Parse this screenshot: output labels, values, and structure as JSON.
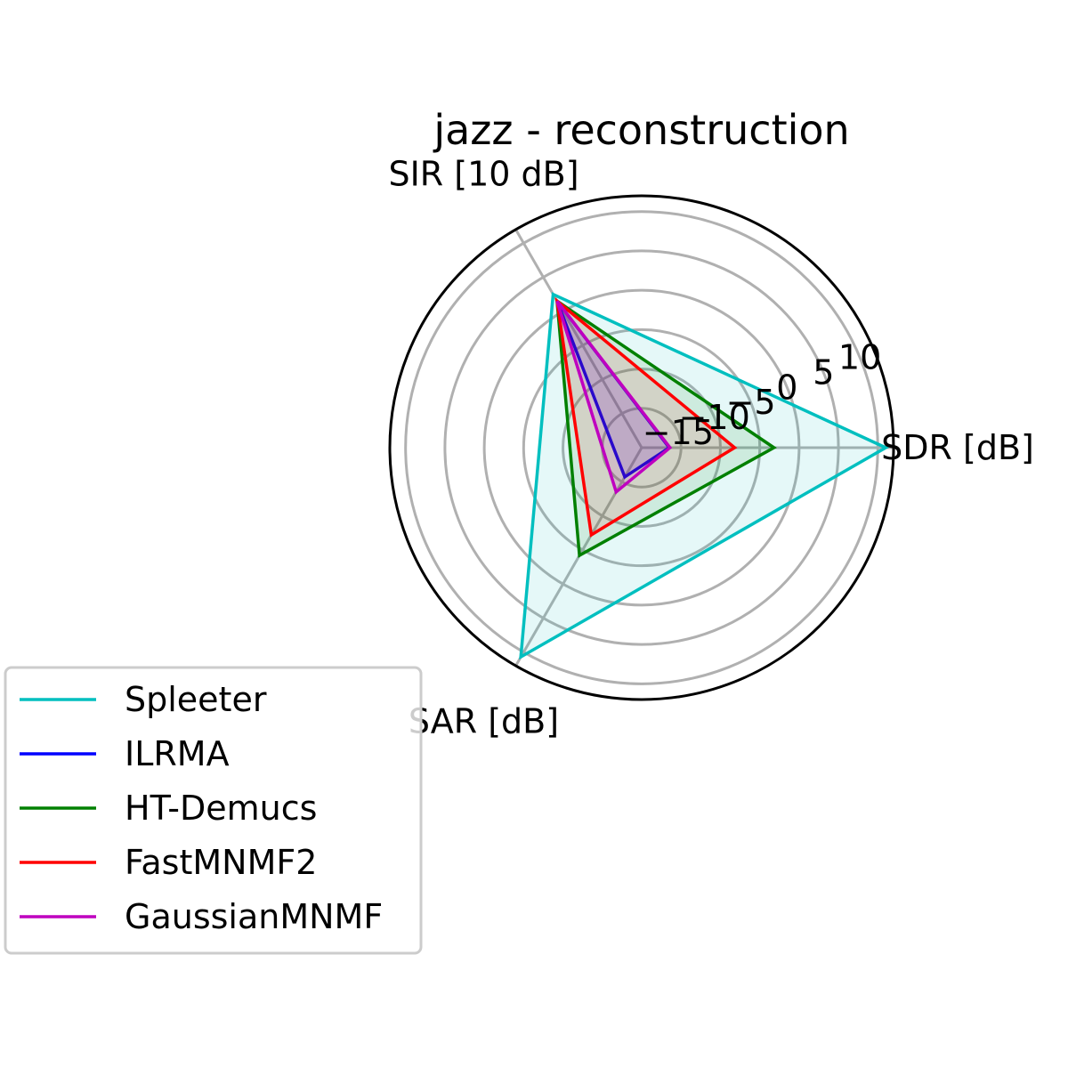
{
  "chart_data": {
    "type": "radar",
    "title": "jazz - reconstruction",
    "axes": [
      "SDR [dB]",
      "SIR [10 dB]",
      "SAR [dB]"
    ],
    "rlim": [
      -20,
      12
    ],
    "rticks": [
      -15,
      -10,
      -5,
      0,
      5,
      10
    ],
    "rtick_labels": [
      "−15",
      "−10",
      "−5",
      "0",
      "5",
      "10"
    ],
    "grid": true,
    "legend_position": "lower-left",
    "series": [
      {
        "name": "Spleeter",
        "color": "#00bfbf",
        "values": [
          11.0,
          2.5,
          10.7
        ],
        "fill": true
      },
      {
        "name": "ILRMA",
        "color": "#0000ff",
        "values": [
          -16.5,
          1.5,
          -15.7
        ],
        "fill": true
      },
      {
        "name": "HT-Demucs",
        "color": "#008000",
        "values": [
          -3.2,
          1.5,
          -4.2
        ],
        "fill": true
      },
      {
        "name": "FastMNMF2",
        "color": "#ff0000",
        "values": [
          -8.2,
          1.5,
          -7.2
        ],
        "fill": true
      },
      {
        "name": "GaussianMNMF",
        "color": "#bf00bf",
        "values": [
          -16.4,
          1.5,
          -13.5
        ],
        "fill": true
      }
    ]
  }
}
